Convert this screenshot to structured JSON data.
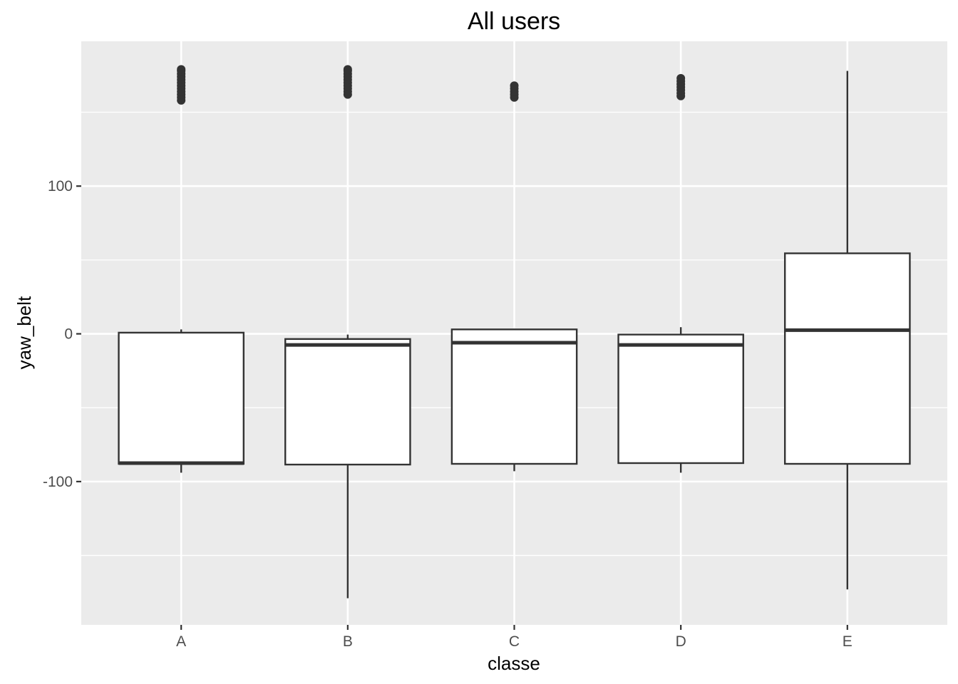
{
  "chart_data": {
    "type": "boxplot",
    "title": "All users",
    "xlabel": "classe",
    "ylabel": "yaw_belt",
    "categories": [
      "A",
      "B",
      "C",
      "D",
      "E"
    ],
    "ylim": [
      -197,
      198
    ],
    "yticks": [
      -100,
      0,
      100
    ],
    "yticks_minor": [
      -150,
      -50,
      50,
      150
    ],
    "grid": true,
    "fill_color": "#ffffff",
    "line_color": "#333333",
    "panel_color": "#ebebeb",
    "boxes": [
      {
        "category": "A",
        "lower_whisker": -94,
        "q1": -88,
        "median": -87.5,
        "q3": 0.8,
        "upper_whisker": 3,
        "outliers": [
          158,
          160,
          162,
          164,
          166,
          168,
          170,
          172,
          174,
          176,
          178,
          179
        ]
      },
      {
        "category": "B",
        "lower_whisker": -179,
        "q1": -88.5,
        "median": -7.5,
        "q3": -3.5,
        "upper_whisker": -0.5,
        "outliers": [
          162,
          164,
          166,
          168,
          170,
          172,
          174,
          176,
          178,
          179
        ]
      },
      {
        "category": "C",
        "lower_whisker": -93,
        "q1": -88,
        "median": -6,
        "q3": 3,
        "upper_whisker": 3.5,
        "outliers": [
          160,
          162,
          164,
          166,
          168
        ]
      },
      {
        "category": "D",
        "lower_whisker": -94,
        "q1": -87.5,
        "median": -7.5,
        "q3": -0.5,
        "upper_whisker": 4.5,
        "outliers": [
          161,
          163,
          165,
          167,
          169,
          171,
          173
        ]
      },
      {
        "category": "E",
        "lower_whisker": -173,
        "q1": -88,
        "median": 2.5,
        "q3": 54.5,
        "upper_whisker": 178,
        "outliers": []
      }
    ]
  }
}
